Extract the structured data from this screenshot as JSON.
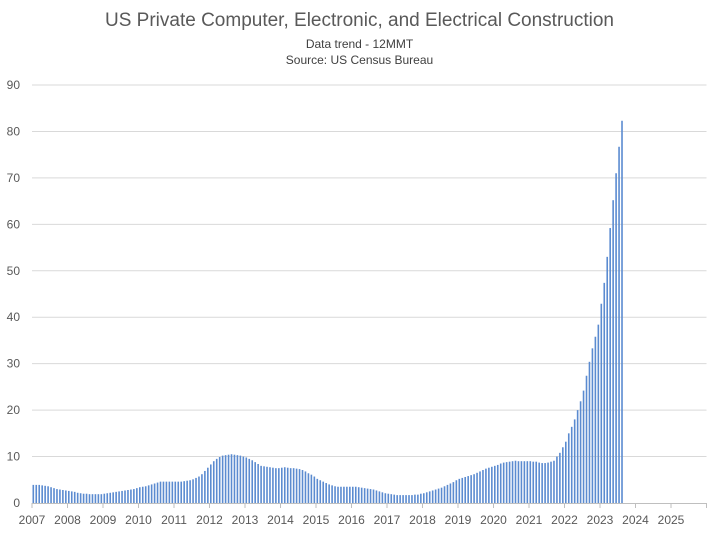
{
  "chart_data": {
    "type": "bar",
    "title": "US Private Computer, Electronic, and Electrical Construction",
    "subtitle": "Data trend - 12MMT",
    "source": "Source: US Census Bureau",
    "frequency": "monthly",
    "xlabel": "",
    "ylabel": "",
    "ylim": [
      0,
      90
    ],
    "yticks": [
      0,
      10,
      20,
      30,
      40,
      50,
      60,
      70,
      80,
      90
    ],
    "xticks": [
      "2007",
      "2008",
      "2009",
      "2010",
      "2011",
      "2012",
      "2013",
      "2014",
      "2015",
      "2016",
      "2017",
      "2018",
      "2019",
      "2020",
      "2021",
      "2022",
      "2023",
      "2024",
      "2025"
    ],
    "xlim": [
      "2007-01",
      "2026-01"
    ],
    "grid": true,
    "legend": "none",
    "bar_color": "#5b8bd0",
    "values_by_year": {
      "2007": [
        3.9,
        3.9,
        3.9,
        3.8,
        3.7,
        3.6,
        3.4,
        3.2,
        3.0,
        2.9,
        2.8,
        2.7
      ],
      "2008": [
        2.6,
        2.5,
        2.4,
        2.2,
        2.1,
        2.0,
        2.0,
        1.9,
        1.9,
        1.9,
        1.9,
        1.9
      ],
      "2009": [
        2.0,
        2.1,
        2.2,
        2.3,
        2.4,
        2.5,
        2.6,
        2.7,
        2.8,
        2.9,
        3.0,
        3.2
      ],
      "2010": [
        3.4,
        3.5,
        3.6,
        3.8,
        4.0,
        4.2,
        4.4,
        4.6,
        4.6,
        4.6,
        4.6,
        4.6
      ],
      "2011": [
        4.6,
        4.6,
        4.6,
        4.7,
        4.8,
        4.9,
        5.1,
        5.4,
        5.7,
        6.2,
        6.9,
        7.6
      ],
      "2012": [
        8.3,
        9.0,
        9.5,
        9.9,
        10.2,
        10.3,
        10.4,
        10.5,
        10.4,
        10.3,
        10.2,
        10.0
      ],
      "2013": [
        9.8,
        9.5,
        9.2,
        8.8,
        8.4,
        8.0,
        7.9,
        7.8,
        7.7,
        7.6,
        7.5,
        7.5
      ],
      "2014": [
        7.6,
        7.7,
        7.6,
        7.5,
        7.5,
        7.4,
        7.3,
        7.1,
        6.8,
        6.4,
        6.1,
        5.7
      ],
      "2015": [
        5.2,
        4.9,
        4.6,
        4.3,
        4.0,
        3.8,
        3.6,
        3.5,
        3.5,
        3.5,
        3.5,
        3.5
      ],
      "2016": [
        3.5,
        3.5,
        3.4,
        3.3,
        3.2,
        3.1,
        3.0,
        2.9,
        2.7,
        2.5,
        2.3,
        2.1
      ],
      "2017": [
        2.0,
        1.9,
        1.8,
        1.7,
        1.7,
        1.7,
        1.7,
        1.7,
        1.7,
        1.8,
        1.8,
        2.0
      ],
      "2018": [
        2.1,
        2.3,
        2.5,
        2.7,
        2.9,
        3.1,
        3.3,
        3.6,
        3.9,
        4.2,
        4.5,
        4.9
      ],
      "2019": [
        5.2,
        5.4,
        5.6,
        5.8,
        6.0,
        6.2,
        6.5,
        6.8,
        7.1,
        7.4,
        7.6,
        7.8
      ],
      "2020": [
        8.0,
        8.2,
        8.5,
        8.7,
        8.8,
        8.9,
        9.0,
        9.1,
        9.0,
        9.0,
        9.0,
        9.0
      ],
      "2021": [
        9.0,
        8.9,
        8.9,
        8.7,
        8.6,
        8.6,
        8.7,
        8.9,
        9.1,
        10.0,
        10.8,
        12.0
      ],
      "2022": [
        13.2,
        15.0,
        16.4,
        18.0,
        20.0,
        21.9,
        24.2,
        27.4,
        30.4,
        33.3,
        35.8,
        38.4
      ],
      "2023": [
        42.9,
        47.4,
        53.0,
        59.2,
        65.2,
        71.0,
        76.7,
        82.3
      ]
    }
  }
}
